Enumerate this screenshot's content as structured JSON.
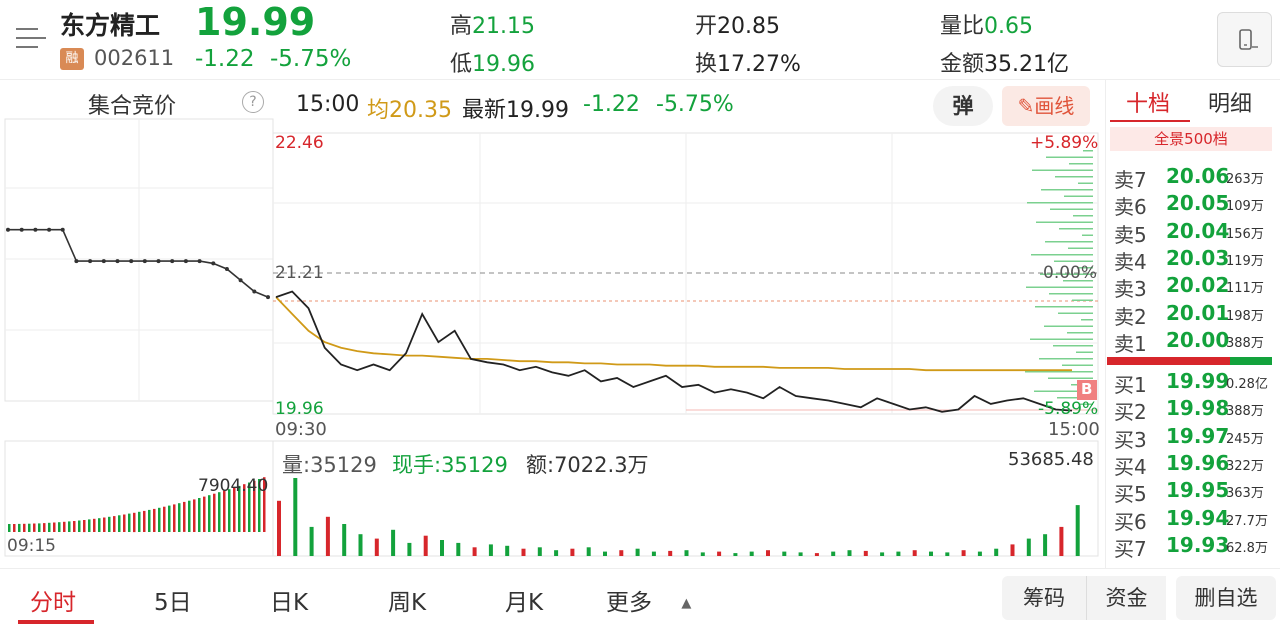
{
  "header": {
    "stock_name": "东方精工",
    "price": "19.99",
    "rong": "融",
    "code": "002611",
    "change": "-1.22",
    "change_pct": "-5.75%",
    "high_label": "高",
    "high": "21.15",
    "low_label": "低",
    "low": "19.96",
    "open_label": "开",
    "open": "20.85",
    "turnover_label": "换",
    "turnover": "17.27%",
    "volratio_label": "量比",
    "volratio": "0.65",
    "amount_label": "金额",
    "amount": "35.21亿"
  },
  "auction": {
    "title": "集合竞价",
    "help": "?",
    "time_label": "09:15",
    "vol_label": "7904.40"
  },
  "info": {
    "time": "15:00",
    "avg_label": "均",
    "avg": "20.35",
    "latest_label": "最新",
    "latest": "19.99",
    "change": "-1.22",
    "change_pct": "-5.75%",
    "dan": "弹",
    "huaxian": "画线"
  },
  "chart": {
    "y_top": "22.46",
    "y_mid": "21.21",
    "y_bottom": "19.96",
    "pct_top": "+5.89%",
    "pct_mid": "0.00%",
    "pct_bottom": "-5.89%",
    "x_start": "09:30",
    "x_end": "15:00",
    "b_marker": "B",
    "vol_text": "量:35129",
    "hand_text": "现手:35129",
    "amt_text": "额:7022.3万",
    "vol_max": "53685.48"
  },
  "chart_data": {
    "type": "line",
    "title": "",
    "xlabel": "",
    "ylabel": "",
    "x_range": [
      "09:30",
      "15:00"
    ],
    "ylim": [
      19.96,
      22.46
    ],
    "prev_close": 21.21,
    "series": [
      {
        "values": [
          21.0,
          21.05,
          20.9,
          20.55,
          20.4,
          20.35,
          20.4,
          20.35,
          20.5,
          20.85,
          20.6,
          20.7,
          20.45,
          20.42,
          20.4,
          20.35,
          20.38,
          20.33,
          20.3,
          20.35,
          20.25,
          20.28,
          20.2,
          20.25,
          20.3,
          20.2,
          20.22,
          20.15,
          20.18,
          20.15,
          20.1,
          20.2,
          20.12,
          20.1,
          20.08,
          20.05,
          20.02,
          20.1,
          20.05,
          20.0,
          20.02,
          19.98,
          20.0,
          20.12,
          20.05,
          20.08,
          20.1,
          20.05,
          20.0,
          19.99
        ]
      },
      {
        "values": [
          21.0,
          20.85,
          20.7,
          20.6,
          20.55,
          20.52,
          20.5,
          20.49,
          20.48,
          20.48,
          20.47,
          20.46,
          20.45,
          20.45,
          20.44,
          20.43,
          20.43,
          20.42,
          20.42,
          20.41,
          20.41,
          20.4,
          20.4,
          20.4,
          20.39,
          20.39,
          20.39,
          20.38,
          20.38,
          20.38,
          20.38,
          20.37,
          20.37,
          20.37,
          20.37,
          20.36,
          20.36,
          20.36,
          20.36,
          20.36,
          20.35,
          20.35,
          20.35,
          20.35,
          20.35,
          20.35,
          20.35,
          20.35,
          20.35,
          20.35
        ]
      }
    ],
    "auction_series": [
      21.6,
      21.6,
      21.6,
      21.6,
      21.6,
      21.32,
      21.32,
      21.32,
      21.32,
      21.32,
      21.32,
      21.32,
      21.32,
      21.32,
      21.32,
      21.3,
      21.25,
      21.15,
      21.05,
      21.0
    ],
    "volume": [
      38000,
      53685,
      20000,
      27000,
      22000,
      15000,
      12000,
      18000,
      9000,
      14000,
      11000,
      9000,
      6000,
      8000,
      7000,
      5000,
      6000,
      4000,
      5000,
      6000,
      3000,
      4000,
      5000,
      3000,
      3500,
      4000,
      2500,
      3000,
      2000,
      3000,
      4000,
      3000,
      2500,
      2000,
      3000,
      4000,
      3500,
      2500,
      3000,
      4000,
      3000,
      2500,
      4000,
      3000,
      5000,
      8000,
      12000,
      15000,
      20000,
      35000
    ]
  },
  "right_panel": {
    "tab_ten": "十档",
    "tab_detail": "明细",
    "full_scale": "全景500档",
    "sells": [
      {
        "k": "卖7",
        "p": "20.06",
        "v": "263万"
      },
      {
        "k": "卖6",
        "p": "20.05",
        "v": "109万"
      },
      {
        "k": "卖5",
        "p": "20.04",
        "v": "156万"
      },
      {
        "k": "卖4",
        "p": "20.03",
        "v": "119万"
      },
      {
        "k": "卖3",
        "p": "20.02",
        "v": "111万"
      },
      {
        "k": "卖2",
        "p": "20.01",
        "v": "198万"
      },
      {
        "k": "卖1",
        "p": "20.00",
        "v": "388万"
      }
    ],
    "buys": [
      {
        "k": "买1",
        "p": "19.99",
        "v": "0.28亿"
      },
      {
        "k": "买2",
        "p": "19.98",
        "v": "388万"
      },
      {
        "k": "买3",
        "p": "19.97",
        "v": "245万"
      },
      {
        "k": "买4",
        "p": "19.96",
        "v": "322万"
      },
      {
        "k": "买5",
        "p": "19.95",
        "v": "363万"
      },
      {
        "k": "买6",
        "p": "19.94",
        "v": "27.7万"
      },
      {
        "k": "买7",
        "p": "19.93",
        "v": "62.8万"
      }
    ]
  },
  "bottom": {
    "tabs": [
      "分时",
      "5日",
      "日K",
      "周K",
      "月K",
      "更多"
    ],
    "chouma": "筹码",
    "zijin": "资金",
    "delete": "删自选"
  },
  "colors": {
    "up": "#d7262b",
    "down": "#13a23c",
    "avg": "#d09a18",
    "line": "#222222"
  }
}
